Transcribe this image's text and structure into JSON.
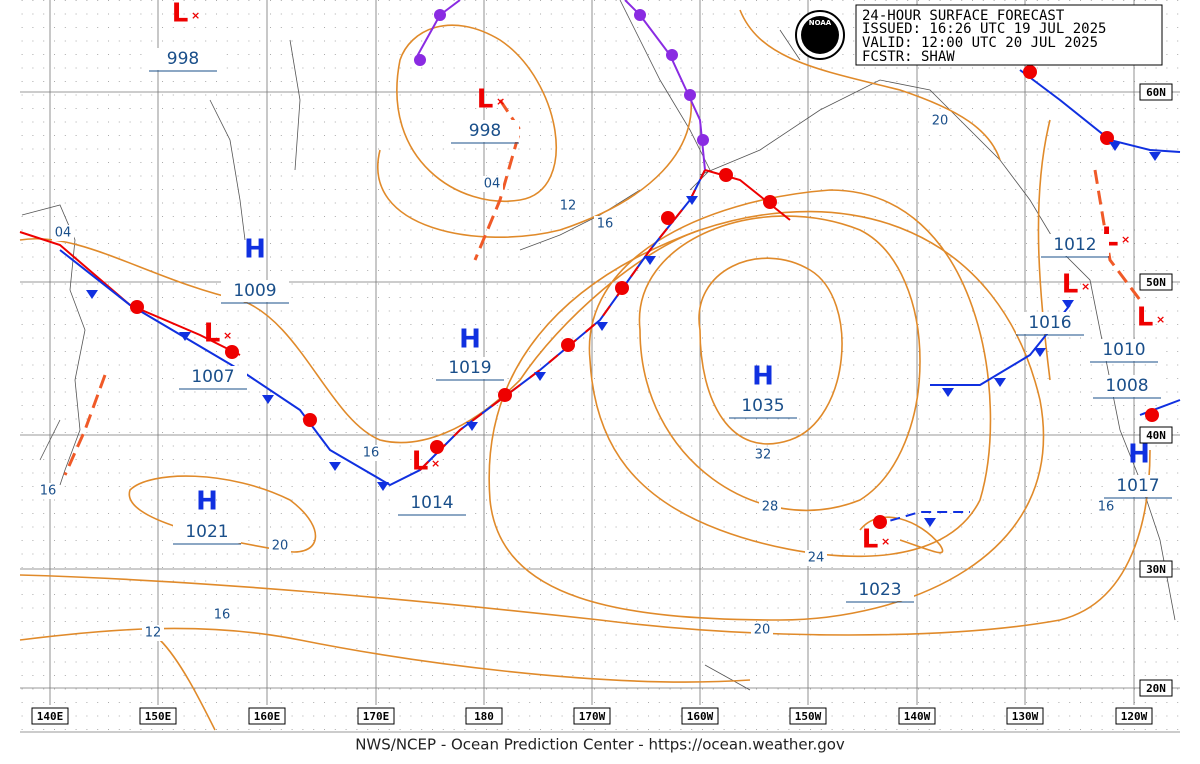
{
  "header": {
    "title": "24-HOUR SURFACE FORECAST",
    "issued": "ISSUED: 16:26 UTC 19 JUL 2025",
    "valid": "VALID:  12:00 UTC 20 JUL 2025",
    "forecaster": "FCSTR:  SHAW",
    "logo": "NOAA"
  },
  "highs": [
    {
      "symbol": "H",
      "pressure": "1009"
    },
    {
      "symbol": "H",
      "pressure": "1019"
    },
    {
      "symbol": "H",
      "pressure": "1035"
    },
    {
      "symbol": "H",
      "pressure": "1021"
    },
    {
      "symbol": "H",
      "pressure": "1017"
    }
  ],
  "lows": [
    {
      "symbol": "L",
      "pressure": "998"
    },
    {
      "symbol": "L",
      "pressure": "998"
    },
    {
      "symbol": "L",
      "pressure": "1007"
    },
    {
      "symbol": "L",
      "pressure": "1014"
    },
    {
      "symbol": "L",
      "pressure": "1012"
    },
    {
      "symbol": "L",
      "pressure": "1016"
    },
    {
      "symbol": "L",
      "pressure": "1010"
    },
    {
      "symbol": "L",
      "pressure": "1023"
    }
  ],
  "other_pressures": [
    "1008"
  ],
  "isobar_labels": [
    "04",
    "04",
    "12",
    "16",
    "20",
    "16",
    "16",
    "20",
    "32",
    "28",
    "24",
    "16",
    "12",
    "20",
    "16"
  ],
  "longitudes": [
    "140E",
    "150E",
    "160E",
    "170E",
    "180",
    "170W",
    "160W",
    "150W",
    "140W",
    "130W",
    "120W"
  ],
  "latitudes": [
    "60N",
    "50N",
    "40N",
    "30N",
    "20N"
  ],
  "footer": "NWS/NCEP - Ocean Prediction Center - https://ocean.weather.gov"
}
